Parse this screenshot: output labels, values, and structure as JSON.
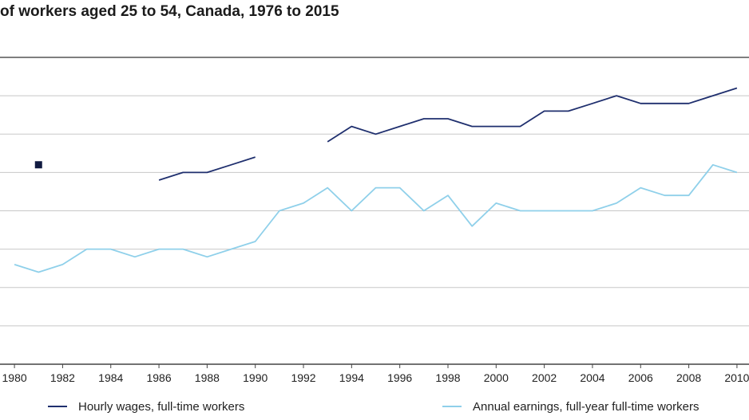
{
  "title": "of workers aged 25 to 54, Canada, 1976 to 2015",
  "colors": {
    "hourly": "#1f2f6e",
    "annual": "#8fd0ea",
    "grid": "#c8c8c8",
    "axis": "#555555"
  },
  "chart_data": {
    "type": "line",
    "title": "of workers aged 25 to 54, Canada, 1976 to 2015",
    "xlabel": "",
    "ylabel": "",
    "xlim": [
      1979.4,
      2010.5
    ],
    "ylim": [
      0,
      8
    ],
    "grid": true,
    "x_ticks": [
      "1980",
      "1982",
      "1984",
      "1986",
      "1988",
      "1990",
      "1992",
      "1994",
      "1996",
      "1998",
      "2000",
      "2002",
      "2004",
      "2006",
      "2008",
      "2010"
    ],
    "marker_point": {
      "series": "hourly",
      "x": 1981,
      "y": 5.2
    },
    "series": [
      {
        "name": "Hourly wages, full-time workers",
        "key": "hourly",
        "segments": [
          {
            "x": [
              1986,
              1987,
              1988,
              1989,
              1990
            ],
            "y": [
              4.8,
              5.0,
              5.0,
              5.2,
              5.4
            ]
          },
          {
            "x": [
              1993,
              1994,
              1995,
              1996,
              1997,
              1998,
              1999,
              2000,
              2001,
              2002,
              2003,
              2004,
              2005,
              2006,
              2007,
              2008,
              2009,
              2010
            ],
            "y": [
              5.8,
              6.2,
              6.0,
              6.2,
              6.4,
              6.4,
              6.2,
              6.2,
              6.2,
              6.6,
              6.6,
              6.8,
              7.0,
              6.8,
              6.8,
              6.8,
              7.0,
              7.2
            ]
          }
        ]
      },
      {
        "name": "Annual earnings, full-year full-time workers",
        "key": "annual",
        "segments": [
          {
            "x": [
              1980,
              1981,
              1982,
              1983,
              1984,
              1985,
              1986,
              1987,
              1988,
              1989,
              1990,
              1991,
              1992,
              1993,
              1994,
              1995,
              1996,
              1997,
              1998,
              1999,
              2000,
              2001,
              2002,
              2003,
              2004,
              2005,
              2006,
              2007,
              2008,
              2009,
              2010
            ],
            "y": [
              2.6,
              2.4,
              2.6,
              3.0,
              3.0,
              2.8,
              3.0,
              3.0,
              2.8,
              3.0,
              3.2,
              4.0,
              4.2,
              4.6,
              4.0,
              4.6,
              4.6,
              4.0,
              4.4,
              3.6,
              4.2,
              4.0,
              4.0,
              4.0,
              4.0,
              4.2,
              4.6,
              4.4,
              4.4,
              5.2,
              5.0
            ]
          }
        ]
      }
    ],
    "legend": [
      "Hourly wages, full-time workers",
      "Annual earnings, full-year full-time workers"
    ],
    "legend_position": "bottom"
  }
}
